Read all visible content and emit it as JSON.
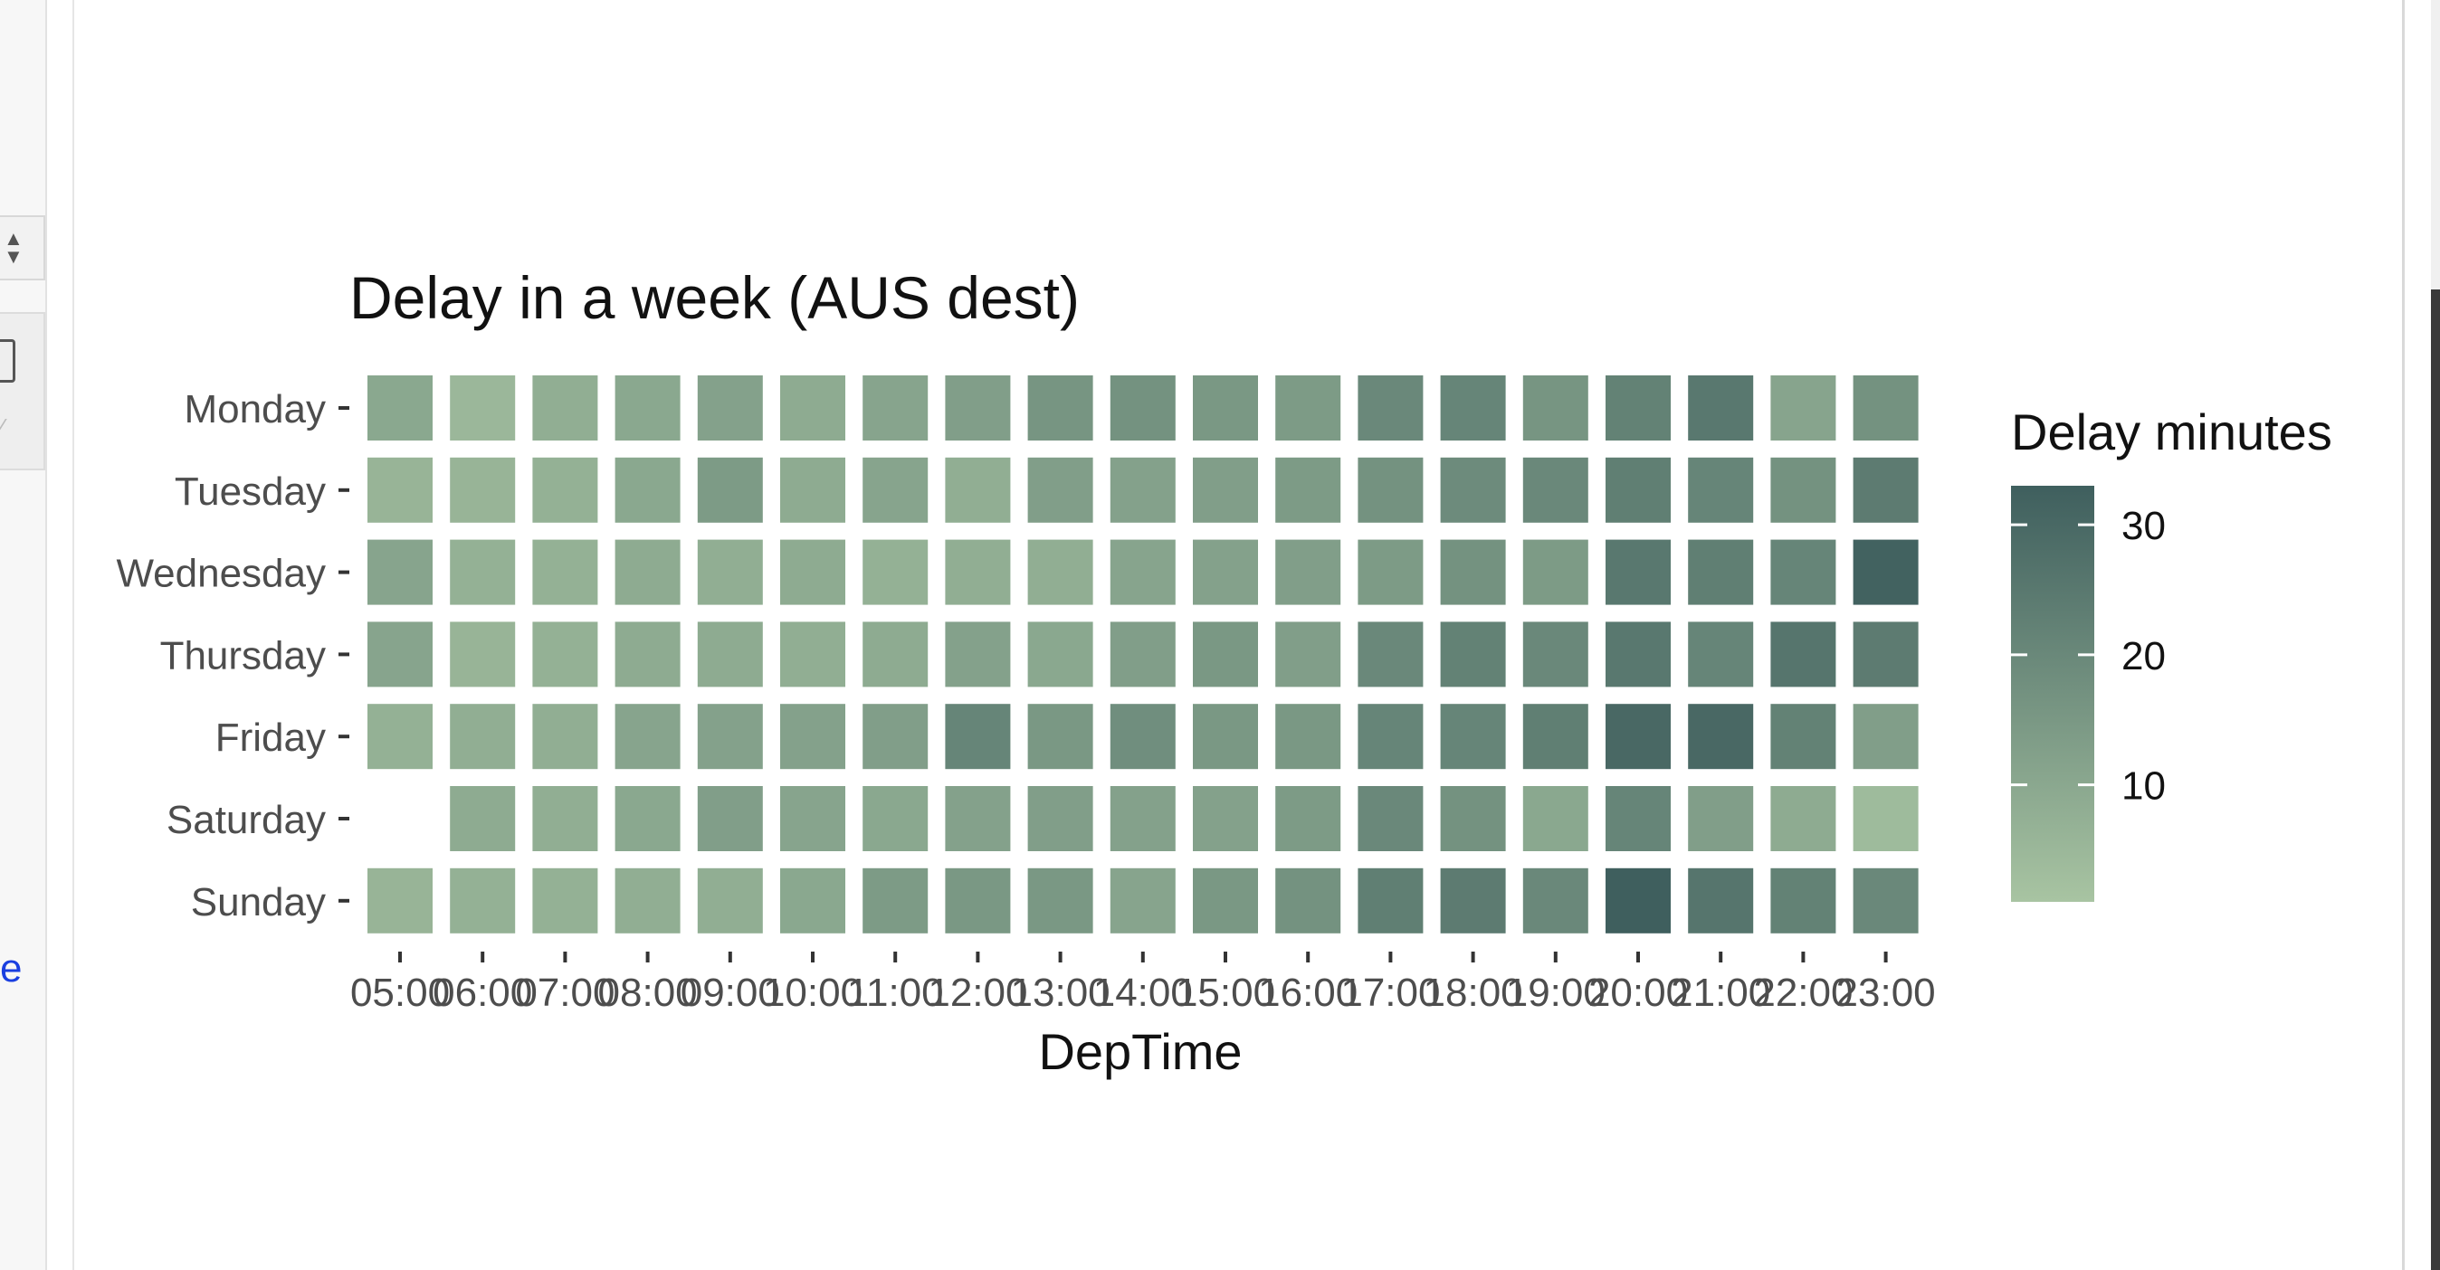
{
  "sidebar": {
    "link_fragment": "e"
  },
  "chart_data": {
    "type": "heatmap",
    "title": "Delay in a week (AUS dest)",
    "xlabel": "DepTime",
    "ylabel": "",
    "x": [
      "05:00",
      "06:00",
      "07:00",
      "08:00",
      "09:00",
      "10:00",
      "11:00",
      "12:00",
      "13:00",
      "14:00",
      "15:00",
      "16:00",
      "17:00",
      "18:00",
      "19:00",
      "20:00",
      "21:00",
      "22:00",
      "23:00"
    ],
    "y": [
      "Monday",
      "Tuesday",
      "Wednesday",
      "Thursday",
      "Friday",
      "Saturday",
      "Sunday"
    ],
    "values": [
      [
        10,
        5,
        8,
        10,
        12,
        9,
        11,
        13,
        16,
        17,
        15,
        14,
        20,
        21,
        16,
        22,
        25,
        11,
        17
      ],
      [
        6,
        6,
        7,
        10,
        14,
        9,
        11,
        8,
        13,
        12,
        13,
        14,
        17,
        19,
        20,
        23,
        21,
        17,
        24
      ],
      [
        11,
        7,
        7,
        9,
        8,
        9,
        7,
        8,
        8,
        11,
        12,
        13,
        14,
        17,
        14,
        25,
        23,
        21,
        32
      ],
      [
        11,
        6,
        7,
        9,
        9,
        8,
        9,
        12,
        10,
        13,
        15,
        13,
        20,
        22,
        20,
        25,
        21,
        26,
        24
      ],
      [
        7,
        8,
        8,
        11,
        12,
        12,
        13,
        21,
        15,
        18,
        15,
        15,
        21,
        21,
        23,
        30,
        30,
        22,
        13
      ],
      [
        null,
        9,
        8,
        10,
        13,
        11,
        10,
        12,
        13,
        12,
        12,
        14,
        20,
        17,
        10,
        21,
        13,
        9,
        4
      ],
      [
        6,
        7,
        7,
        8,
        8,
        10,
        14,
        15,
        15,
        11,
        15,
        17,
        23,
        24,
        20,
        34,
        26,
        22,
        20
      ]
    ],
    "legend": {
      "title": "Delay minutes",
      "ticks": [
        10,
        20,
        30
      ],
      "range": [
        1,
        33
      ],
      "placement": "right"
    },
    "color_low": "#a8c4a2",
    "color_high": "#3f5f5e",
    "grid": false
  }
}
